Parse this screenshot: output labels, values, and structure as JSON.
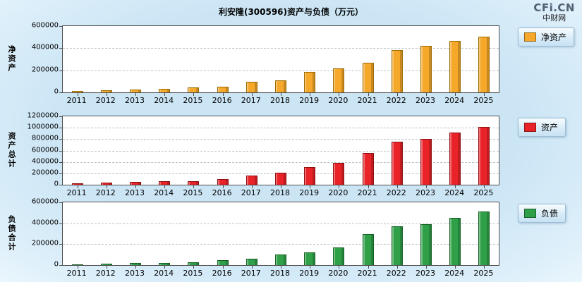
{
  "page": {
    "title": "利安隆(300596)资产与负债（万元）",
    "logo": {
      "main": "CFi.CN",
      "sub": "中财网"
    }
  },
  "chart_data": [
    {
      "type": "bar",
      "id": "net-assets",
      "axis_label": "净资产",
      "legend": "净资产",
      "color": "#F5A829",
      "border_color": "#9C6A00",
      "categories": [
        "2011",
        "2012",
        "2013",
        "2014",
        "2015",
        "2016",
        "2017",
        "2018",
        "2019",
        "2020",
        "2021",
        "2022",
        "2023",
        "2024",
        "2025"
      ],
      "values": [
        15000,
        20000,
        28000,
        35000,
        42000,
        52000,
        95000,
        110000,
        185000,
        215000,
        265000,
        385000,
        420000,
        465000,
        505000
      ],
      "ylim": [
        0,
        600000
      ],
      "yticks": [
        0,
        200000,
        400000,
        600000
      ],
      "grid": "dashed horizontal"
    },
    {
      "type": "bar",
      "id": "total-assets",
      "axis_label": "资产总计",
      "legend": "资产",
      "color": "#EA2328",
      "border_color": "#8E0E10",
      "categories": [
        "2011",
        "2012",
        "2013",
        "2014",
        "2015",
        "2016",
        "2017",
        "2018",
        "2019",
        "2020",
        "2021",
        "2022",
        "2023",
        "2024",
        "2025"
      ],
      "values": [
        25000,
        38000,
        50000,
        57000,
        67000,
        100000,
        158000,
        210000,
        307000,
        383000,
        560000,
        755000,
        810000,
        915000,
        1020000
      ],
      "ylim": [
        0,
        1200000
      ],
      "yticks": [
        0,
        200000,
        400000,
        600000,
        800000,
        1000000,
        1200000
      ],
      "grid": "dashed horizontal"
    },
    {
      "type": "bar",
      "id": "liabilities",
      "axis_label": "负债合计",
      "legend": "负债",
      "color": "#2FA048",
      "border_color": "#145F22",
      "categories": [
        "2011",
        "2012",
        "2013",
        "2014",
        "2015",
        "2016",
        "2017",
        "2018",
        "2019",
        "2020",
        "2021",
        "2022",
        "2023",
        "2024",
        "2025"
      ],
      "values": [
        10000,
        15000,
        20000,
        22000,
        25000,
        48000,
        63000,
        100000,
        122000,
        168000,
        295000,
        370000,
        390000,
        450000,
        515000
      ],
      "ylim": [
        0,
        600000
      ],
      "yticks": [
        0,
        200000,
        400000,
        600000
      ],
      "grid": "dashed horizontal"
    }
  ]
}
